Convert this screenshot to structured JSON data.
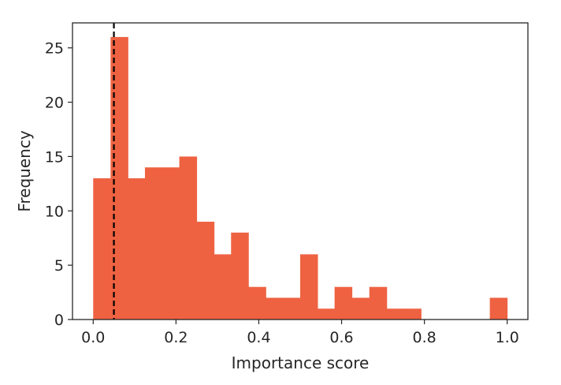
{
  "chart_data": {
    "type": "bar",
    "subtype": "histogram",
    "xlabel": "Importance score",
    "ylabel": "Frequency",
    "xlim": [
      -0.05,
      1.05
    ],
    "ylim": [
      0,
      27.3
    ],
    "bin_width": 0.0417,
    "bins": [
      {
        "x0": 0.0,
        "count": 13
      },
      {
        "x0": 0.042,
        "count": 26
      },
      {
        "x0": 0.083,
        "count": 13
      },
      {
        "x0": 0.125,
        "count": 14
      },
      {
        "x0": 0.167,
        "count": 14
      },
      {
        "x0": 0.208,
        "count": 15
      },
      {
        "x0": 0.25,
        "count": 9
      },
      {
        "x0": 0.292,
        "count": 6
      },
      {
        "x0": 0.333,
        "count": 8
      },
      {
        "x0": 0.375,
        "count": 3
      },
      {
        "x0": 0.417,
        "count": 2
      },
      {
        "x0": 0.458,
        "count": 2
      },
      {
        "x0": 0.5,
        "count": 6
      },
      {
        "x0": 0.542,
        "count": 1
      },
      {
        "x0": 0.583,
        "count": 3
      },
      {
        "x0": 0.625,
        "count": 2
      },
      {
        "x0": 0.667,
        "count": 3
      },
      {
        "x0": 0.708,
        "count": 1
      },
      {
        "x0": 0.75,
        "count": 1
      },
      {
        "x0": 0.792,
        "count": 0
      },
      {
        "x0": 0.833,
        "count": 0
      },
      {
        "x0": 0.875,
        "count": 0
      },
      {
        "x0": 0.917,
        "count": 0
      },
      {
        "x0": 0.958,
        "count": 2
      }
    ],
    "xticks": [
      0.0,
      0.2,
      0.4,
      0.6,
      0.8,
      1.0
    ],
    "xtick_labels": [
      "0.0",
      "0.2",
      "0.4",
      "0.6",
      "0.8",
      "1.0"
    ],
    "yticks": [
      0,
      5,
      10,
      15,
      20,
      25
    ],
    "ytick_labels": [
      "0",
      "5",
      "10",
      "15",
      "20",
      "25"
    ],
    "threshold_line": {
      "x": 0.05,
      "style": "dashed",
      "color": "#000000"
    },
    "bar_color": "#ee6242",
    "grid": false,
    "legend": "none"
  }
}
